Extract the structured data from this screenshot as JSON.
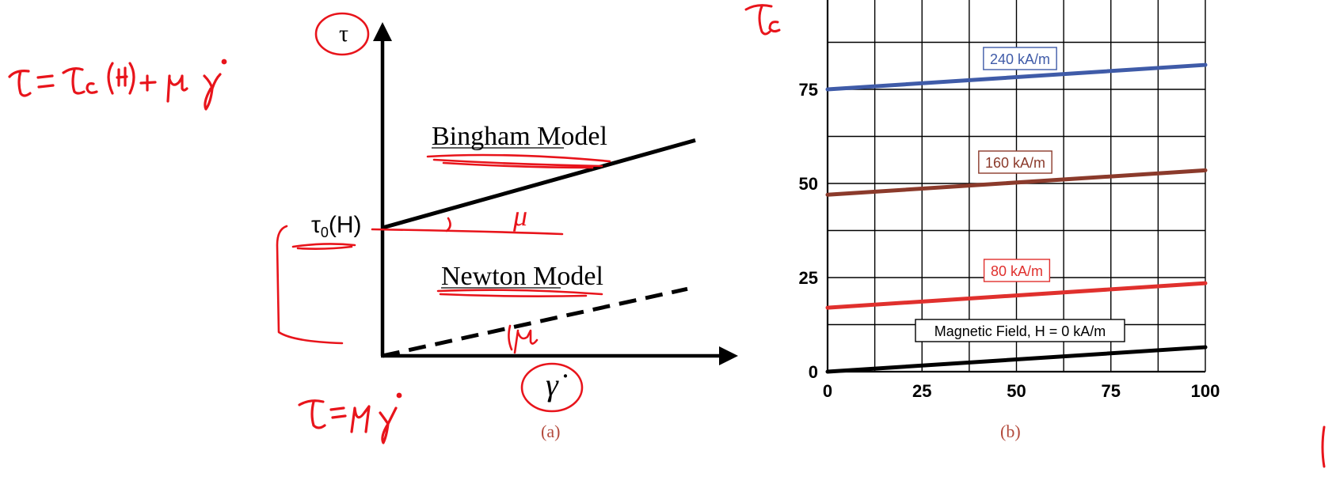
{
  "annotations": {
    "equation_bingham": "τ = τ_c(H) + μ γ̇",
    "equation_newton": "τ = μ γ̇",
    "symbol_tau_c": "τ_c",
    "mu_label_bingham": "μ",
    "mu_label_newton": "μ",
    "ink_color": "#e8141b"
  },
  "chart_data": [
    {
      "type": "line",
      "caption": "(a)",
      "ylabel": "τ",
      "xlabel": "γ̇",
      "y_intercept_label_base": "τ",
      "y_intercept_label_sub": "0",
      "y_intercept_label_rest": "(H)",
      "series": [
        {
          "name": "Bingham Model",
          "style": "solid",
          "color": "#000000",
          "intercept": 1,
          "slope": 0.28
        },
        {
          "name": "Newton Model",
          "style": "dashed",
          "color": "#000000",
          "intercept": 0,
          "slope": 0.22
        }
      ]
    },
    {
      "type": "line",
      "caption": "(b)",
      "xlim": [
        0,
        100
      ],
      "ylim": [
        0,
        100
      ],
      "xticks": [
        "0",
        "25",
        "50",
        "75",
        "100"
      ],
      "yticks": [
        "0",
        "25",
        "50",
        "75"
      ],
      "grid": true,
      "series": [
        {
          "label": "240 kA/m",
          "color": "#3f5ba8",
          "x": [
            0,
            100
          ],
          "y": [
            75,
            81.5
          ]
        },
        {
          "label": "160 kA/m",
          "color": "#8b3a2b",
          "x": [
            0,
            100
          ],
          "y": [
            47,
            53.5
          ]
        },
        {
          "label": "80 kA/m",
          "color": "#e0302d",
          "x": [
            0,
            100
          ],
          "y": [
            17,
            23.5
          ]
        },
        {
          "label": "Magnetic Field, H = 0 kA/m",
          "color": "#000000",
          "x": [
            0,
            100
          ],
          "y": [
            0,
            6.5
          ]
        }
      ]
    }
  ]
}
